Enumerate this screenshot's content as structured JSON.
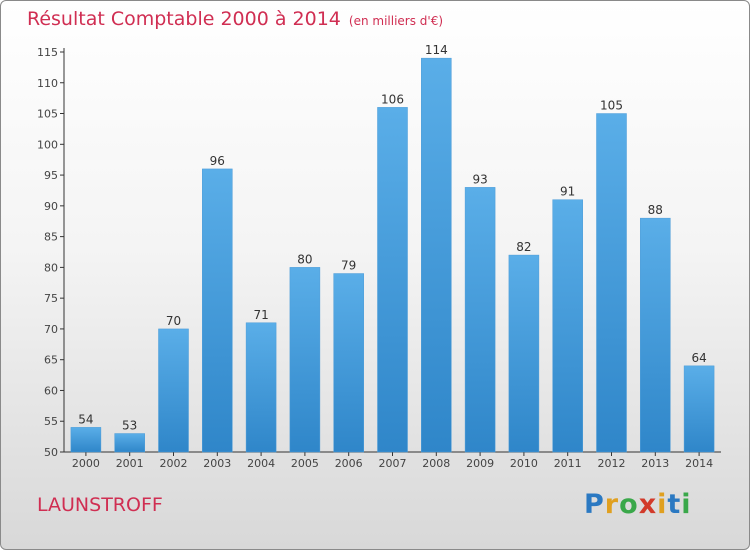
{
  "header": {
    "title": "Résultat Comptable 2000 à 2014",
    "subtitle": "(en milliers d'€)"
  },
  "footer": {
    "commune": "LAUNSTROFF",
    "brand": "Proxiti"
  },
  "colors": {
    "title": "#d02e52",
    "bar_top": "#5aaee8",
    "bar_bottom": "#2f86c9"
  },
  "chart_data": {
    "type": "bar",
    "title": "Résultat Comptable 2000 à 2014",
    "xlabel": "",
    "ylabel": "",
    "ylim": [
      50,
      115
    ],
    "yticks": [
      50,
      55,
      60,
      65,
      70,
      75,
      80,
      85,
      90,
      95,
      100,
      105,
      110,
      115
    ],
    "categories": [
      "2000",
      "2001",
      "2002",
      "2003",
      "2004",
      "2005",
      "2006",
      "2007",
      "2008",
      "2009",
      "2010",
      "2011",
      "2012",
      "2013",
      "2014"
    ],
    "values": [
      54,
      53,
      70,
      96,
      71,
      80,
      79,
      106,
      114,
      93,
      82,
      91,
      105,
      88,
      64
    ],
    "grid": false,
    "legend": "none"
  }
}
